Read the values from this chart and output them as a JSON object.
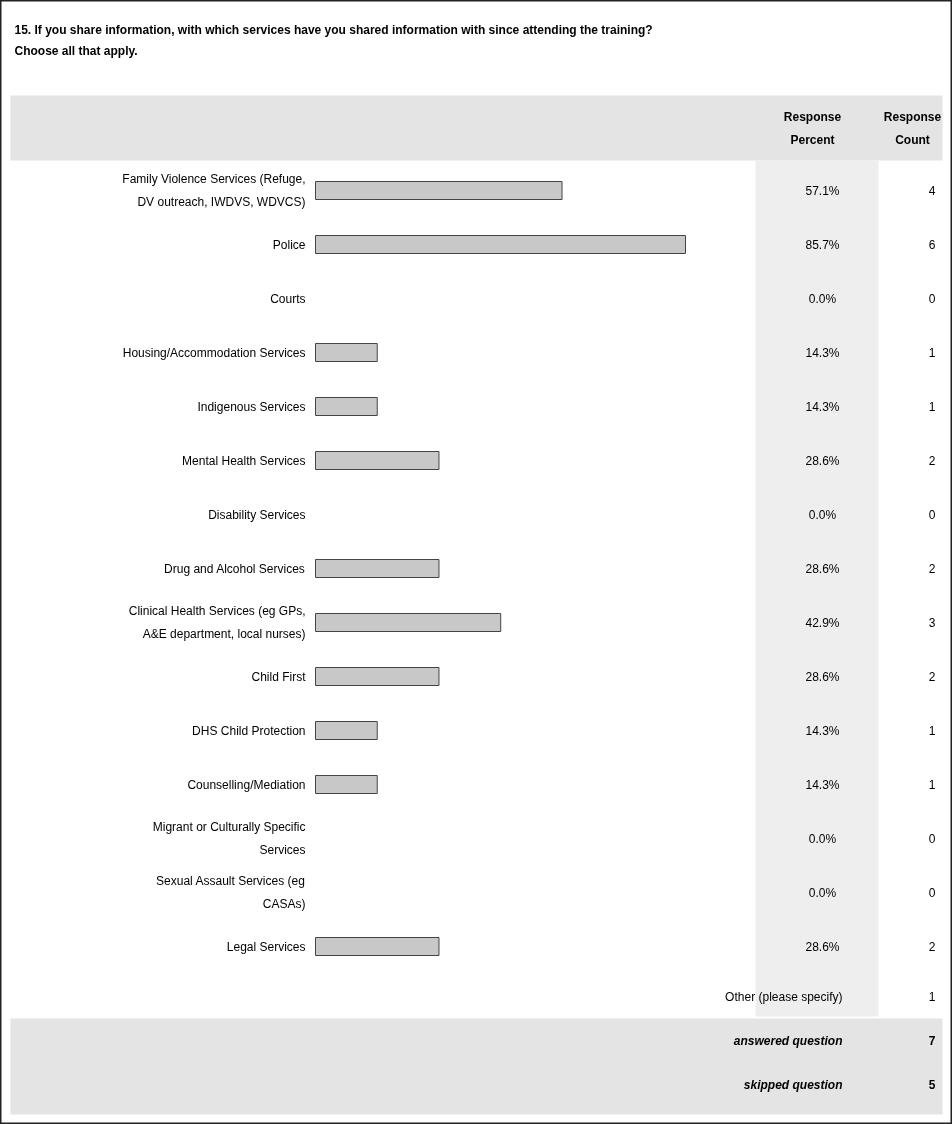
{
  "chart_data": {
    "type": "bar",
    "orientation": "horizontal",
    "title": "15. If you share information, with which services have you shared information with since attending the training? Choose all that apply.",
    "categories": [
      "Family Violence Services (Refuge, DV outreach, IWDVS, WDVCS)",
      "Police",
      "Courts",
      "Housing/Accommodation Services",
      "Indigenous Services",
      "Mental Health Services",
      "Disability Services",
      "Drug and Alcohol Services",
      "Clinical Health Services (eg GPs, A&E department, local nurses)",
      "Child First",
      "DHS Child Protection",
      "Counselling/Mediation",
      "Migrant or Culturally Specific Services",
      "Sexual Assault Services (eg CASAs)",
      "Legal Services"
    ],
    "values": [
      57.1,
      85.7,
      0.0,
      14.3,
      14.3,
      28.6,
      0.0,
      28.6,
      42.9,
      28.6,
      14.3,
      14.3,
      0.0,
      0.0,
      28.6
    ],
    "value_labels": [
      "57.1%",
      "85.7%",
      "0.0%",
      "14.3%",
      "14.3%",
      "28.6%",
      "0.0%",
      "28.6%",
      "42.9%",
      "28.6%",
      "14.3%",
      "14.3%",
      "0.0%",
      "0.0%",
      "28.6%"
    ],
    "color": "#c8c8c8",
    "tick_labels": false,
    "annotations": [
      "Response Percent",
      "Response Count",
      "4",
      "6",
      "0",
      "1",
      "1",
      "2",
      "0",
      "2",
      "3",
      "2",
      "1",
      "1",
      "0",
      "0",
      "2",
      "Other (please specify)",
      "1",
      "answered question",
      "7",
      "skipped question",
      "5"
    ]
  }
}
